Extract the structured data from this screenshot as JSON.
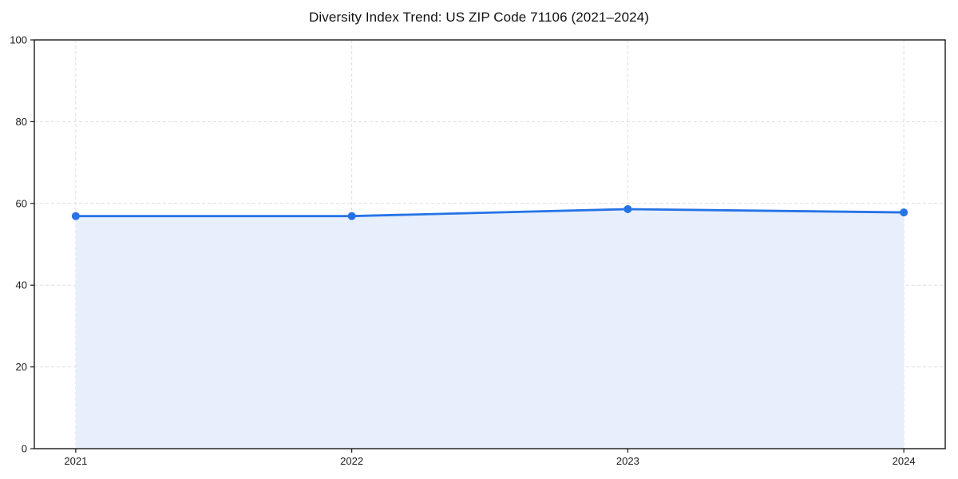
{
  "chart_data": {
    "type": "area",
    "title": "Diversity Index Trend: US ZIP Code 71106 (2021–2024)",
    "x": [
      2021,
      2022,
      2023,
      2024
    ],
    "series": [
      {
        "name": "Diversity Index",
        "values": [
          56.9,
          56.9,
          58.6,
          57.8
        ]
      }
    ],
    "xlabel": "",
    "ylabel": "",
    "ylim": [
      0,
      100
    ],
    "yticks": [
      0,
      20,
      40,
      60,
      80,
      100
    ],
    "xticks": [
      2021,
      2022,
      2023,
      2024
    ],
    "grid": "dashed",
    "legend_position": "none",
    "colors": {
      "line": "#2673e6",
      "fill": "#e7effc",
      "marker": "#2673e6",
      "grid": "#dedede",
      "spine": "#1a1a1a",
      "tick_label": "#1a1a1a",
      "title": "#111111",
      "background": "#ffffff"
    }
  }
}
